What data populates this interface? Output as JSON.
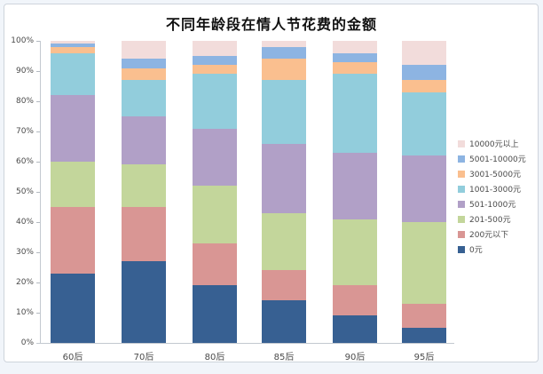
{
  "chart_data": {
    "type": "bar",
    "subtype": "stacked-100-percent",
    "title": "不同年龄段在情人节花费的金额",
    "categories": [
      "60后",
      "70后",
      "80后",
      "85后",
      "90后",
      "95后"
    ],
    "series": [
      {
        "name": "0元",
        "color": "#376092",
        "values": [
          23,
          27,
          19,
          14,
          9,
          5
        ]
      },
      {
        "name": "200元以下",
        "color": "#d99694",
        "values": [
          22,
          18,
          14,
          10,
          10,
          8
        ]
      },
      {
        "name": "201-500元",
        "color": "#c3d69b",
        "values": [
          15,
          14,
          19,
          19,
          22,
          27
        ]
      },
      {
        "name": "501-1000元",
        "color": "#b1a0c7",
        "values": [
          22,
          16,
          19,
          23,
          22,
          22
        ]
      },
      {
        "name": "1001-3000元",
        "color": "#92cddc",
        "values": [
          14,
          12,
          18,
          21,
          26,
          21
        ]
      },
      {
        "name": "3001-5000元",
        "color": "#fabf8f",
        "values": [
          2,
          4,
          3,
          7,
          4,
          4
        ]
      },
      {
        "name": "5001-10000元",
        "color": "#8db4e2",
        "values": [
          1,
          3,
          3,
          4,
          3,
          5
        ]
      },
      {
        "name": "10000元以上",
        "color": "#f2dcdb",
        "values": [
          1,
          6,
          5,
          2,
          4,
          8
        ]
      }
    ],
    "yticks": [
      "0%",
      "10%",
      "20%",
      "30%",
      "40%",
      "50%",
      "60%",
      "70%",
      "80%",
      "90%",
      "100%"
    ],
    "ylim": [
      0,
      100
    ],
    "grid": false,
    "legend_position": "right",
    "legend_order_top_to_bottom": [
      "10000元以上",
      "5001-10000元",
      "3001-5000元",
      "1001-3000元",
      "501-1000元",
      "201-500元",
      "200元以下",
      "0元"
    ]
  },
  "colors": {
    "page_background": "#f1f5fa",
    "frame_background": "#ffffff",
    "frame_border": "#ced4dc",
    "axis_line": "#c3c9d0",
    "tick_text": "#4a4a4a",
    "title_text": "#111111"
  }
}
